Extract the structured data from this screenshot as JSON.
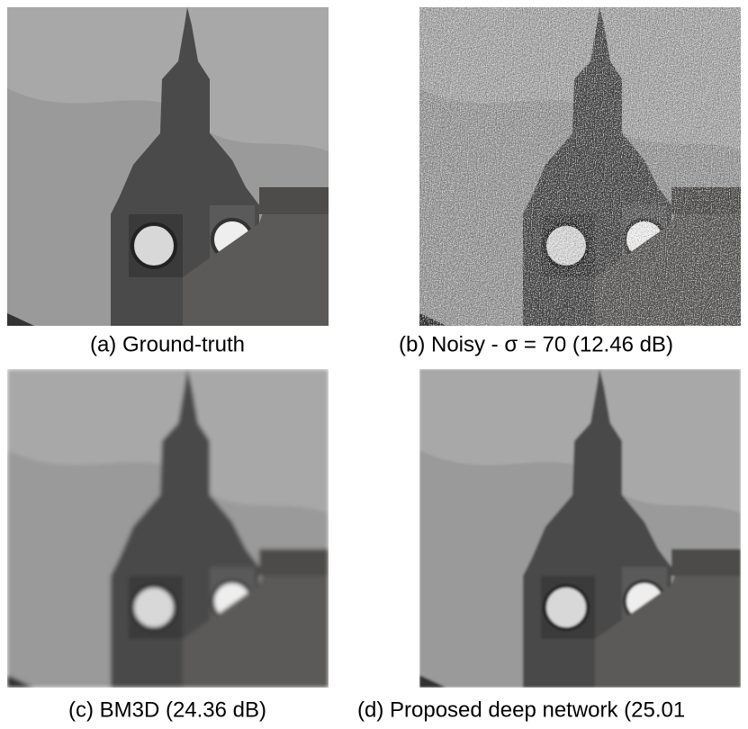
{
  "figure": {
    "panels": [
      {
        "caption": "(a) Ground-truth"
      },
      {
        "caption": "(b) Noisy - σ = 70 (12.46 dB)"
      },
      {
        "caption": "(c) BM3D (24.36 dB)"
      },
      {
        "caption": "(d) Proposed deep network (25.01"
      }
    ]
  }
}
